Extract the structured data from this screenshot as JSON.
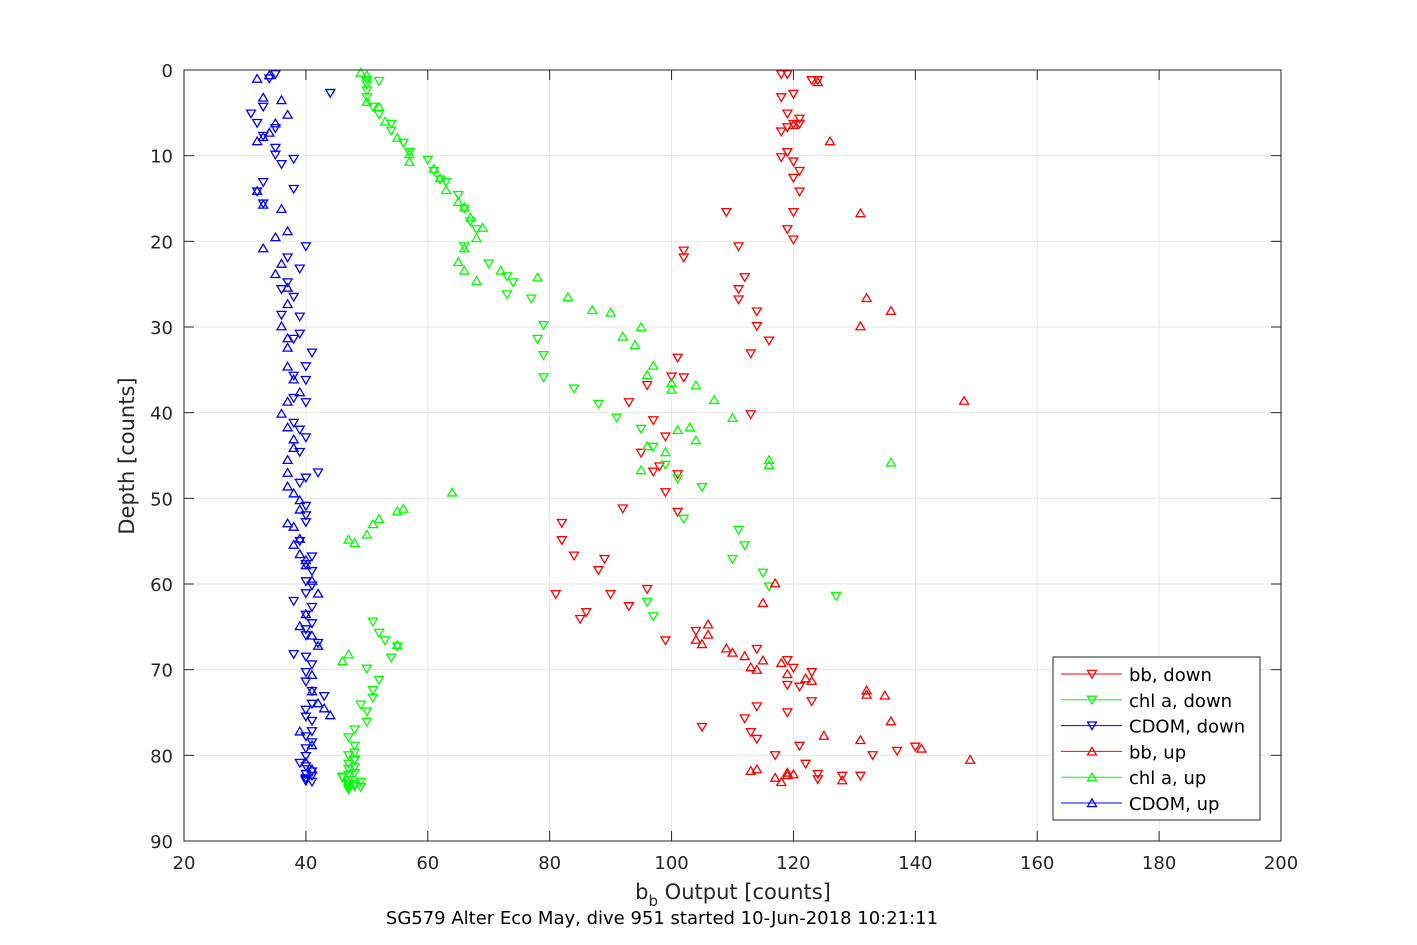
{
  "chart_data": {
    "type": "scatter",
    "xlabel_main": "b",
    "xlabel_sub": "b",
    "xlabel_rest": " Output [counts]",
    "ylabel": "Depth [counts]",
    "bottom_title": "SG579 Alter Eco May, dive 951 started 10-Jun-2018 10:21:11",
    "xlim": [
      20,
      200
    ],
    "ylim": [
      0,
      90
    ],
    "y_reversed": true,
    "grid": true,
    "legend_position": "bottom-right",
    "xticks": [
      "20",
      "40",
      "60",
      "80",
      "100",
      "120",
      "140",
      "160",
      "180",
      "200"
    ],
    "yticks": [
      "0",
      "10",
      "20",
      "30",
      "40",
      "50",
      "60",
      "70",
      "80",
      "90"
    ],
    "series": [
      {
        "name": "bb, down",
        "color": "#ff0000",
        "marker": "down",
        "x": [
          118,
          119,
          123,
          124,
          120,
          118,
          119,
          121,
          120,
          121,
          119,
          118,
          119,
          118,
          120,
          121,
          120,
          121,
          120,
          119,
          120,
          109,
          102,
          102,
          111,
          112,
          111,
          111,
          114,
          114,
          116,
          113,
          101,
          100,
          102,
          96,
          93,
          113,
          97,
          99,
          95,
          98,
          97,
          101,
          99,
          101,
          92,
          82,
          82,
          84,
          89,
          88,
          96,
          81,
          93,
          90,
          86,
          85,
          104,
          99,
          114,
          119,
          120,
          123,
          119,
          121,
          123,
          114,
          119,
          112,
          105,
          113,
          114,
          121,
          117,
          122,
          124,
          131,
          140,
          137,
          133,
          128,
          124
        ],
        "y": [
          0.5,
          0.5,
          1.2,
          1.2,
          2.8,
          3.2,
          5.1,
          5.7,
          6.3,
          6.3,
          6.7,
          7.2,
          9.6,
          10.2,
          10.7,
          11.8,
          12.6,
          14.2,
          16.6,
          18.6,
          19.8,
          16.6,
          21.1,
          21.9,
          20.6,
          24.2,
          25.6,
          26.8,
          28.2,
          29.9,
          31.6,
          33.1,
          33.6,
          35.8,
          35.9,
          36.8,
          38.8,
          40.2,
          40.9,
          42.8,
          44.7,
          46.3,
          46.9,
          47.2,
          49.3,
          51.6,
          51.2,
          52.9,
          54.9,
          56.7,
          57.1,
          58.4,
          60.6,
          61.2,
          62.6,
          61.2,
          63.3,
          64.1,
          65.5,
          66.6,
          67.6,
          68.9,
          69.8,
          70.3,
          71.8,
          72.0,
          73.7,
          74.3,
          75.0,
          75.7,
          76.7,
          77.3,
          78.1,
          78.9,
          80.0,
          81.0,
          82.2,
          82.4,
          79.0,
          79.5,
          80.0,
          82.4,
          82.8
        ]
      },
      {
        "name": "chl a, down",
        "color": "#00ff00",
        "marker": "down",
        "x": [
          50,
          52,
          50,
          50,
          50,
          44,
          51,
          52,
          54,
          54,
          56,
          57,
          60,
          61,
          62,
          63,
          65,
          66,
          67,
          68,
          66,
          70,
          73,
          74,
          73,
          77,
          79,
          78,
          79,
          79,
          84,
          88,
          91,
          95,
          97,
          99,
          101,
          105,
          102,
          111,
          112,
          110,
          115,
          116,
          127,
          96,
          97,
          51,
          52,
          53,
          55,
          54,
          50,
          52,
          51,
          51,
          49,
          50,
          50,
          48,
          47,
          48,
          48,
          48,
          47,
          46,
          47,
          47,
          48,
          47,
          48,
          48,
          47,
          46,
          47,
          49,
          48,
          47,
          48,
          49,
          47,
          47,
          47
        ],
        "y": [
          1.2,
          1.3,
          1.7,
          2.4,
          3.2,
          2.7,
          4.3,
          5.2,
          6.3,
          7.1,
          8.5,
          9.6,
          10.5,
          11.8,
          12.8,
          13.1,
          14.6,
          16.2,
          17.7,
          18.6,
          20.6,
          22.6,
          24.1,
          24.8,
          26.2,
          26.7,
          29.8,
          31.4,
          33.3,
          35.9,
          37.2,
          39.0,
          40.6,
          41.9,
          44.0,
          46.1,
          47.7,
          48.7,
          52.4,
          53.7,
          55.5,
          57.1,
          58.7,
          60.3,
          61.4,
          62.1,
          63.8,
          64.4,
          65.7,
          66.6,
          67.3,
          68.6,
          69.9,
          71.2,
          72.4,
          73.3,
          74.1,
          74.9,
          76.1,
          77.0,
          77.9,
          78.9,
          79.7,
          80.6,
          81.6,
          82.5,
          83.3,
          80.0,
          80.5,
          81.0,
          81.4,
          82.1,
          82.3,
          82.6,
          82.9,
          83.1,
          83.4,
          83.5,
          83.6,
          83.7,
          83.8,
          83.9,
          84.0
        ]
      },
      {
        "name": "CDOM, down",
        "color": "#0000ff",
        "marker": "down",
        "x": [
          35,
          34,
          44,
          33,
          31,
          32,
          35,
          33,
          35,
          35,
          38,
          36,
          33,
          32,
          33,
          38,
          40,
          37,
          39,
          37,
          36,
          38,
          36,
          39,
          39,
          38,
          41,
          40,
          38,
          40,
          38,
          40,
          38,
          39,
          40,
          39,
          42,
          40,
          39,
          40,
          40,
          40,
          39,
          41,
          40,
          41,
          40,
          41,
          40,
          38,
          41,
          40,
          41,
          40,
          40,
          42,
          38,
          40,
          41,
          40,
          40,
          41,
          43,
          41,
          40,
          40,
          41,
          41,
          40,
          41,
          40,
          40,
          39,
          40,
          41,
          40,
          41,
          40,
          40,
          40,
          40,
          41
        ],
        "y": [
          0.5,
          1.0,
          2.7,
          4.3,
          5.1,
          6.2,
          6.8,
          7.7,
          9.1,
          9.9,
          10.4,
          11.0,
          13.1,
          14.2,
          15.6,
          13.9,
          20.6,
          21.9,
          23.2,
          24.8,
          25.6,
          26.5,
          28.6,
          28.8,
          30.8,
          31.4,
          33.0,
          34.6,
          35.7,
          36.2,
          38.3,
          38.8,
          41.2,
          42.0,
          42.9,
          44.6,
          47.0,
          47.6,
          48.2,
          50.9,
          52.0,
          52.8,
          55.0,
          56.8,
          57.7,
          58.5,
          59.7,
          60.2,
          61.1,
          62.0,
          62.7,
          63.6,
          64.6,
          65.3,
          66.0,
          66.9,
          68.2,
          68.5,
          69.4,
          70.3,
          71.4,
          72.5,
          73.1,
          74.0,
          74.7,
          75.5,
          76.0,
          77.2,
          77.8,
          78.5,
          79.2,
          80.1,
          80.9,
          81.3,
          81.9,
          82.2,
          82.4,
          82.7,
          82.8,
          82.9,
          83.0,
          83.1
        ]
      },
      {
        "name": "bb, up",
        "color": "#ff0000",
        "marker": "up",
        "x": [
          124,
          120,
          126,
          131,
          132,
          136,
          131,
          148,
          117,
          115,
          106,
          106,
          104,
          105,
          109,
          110,
          112,
          115,
          118,
          113,
          114,
          119,
          122,
          123,
          125,
          131,
          132,
          135,
          136,
          141,
          149,
          132,
          120,
          128,
          119,
          114,
          113,
          119,
          117,
          118
        ],
        "y": [
          1.4,
          6.4,
          8.3,
          16.7,
          26.6,
          28.1,
          29.9,
          38.6,
          59.9,
          62.2,
          64.7,
          65.9,
          66.5,
          67.0,
          67.5,
          68.0,
          68.4,
          68.9,
          69.2,
          69.7,
          70.0,
          70.5,
          71.0,
          71.3,
          77.7,
          78.2,
          72.4,
          73.0,
          76.0,
          79.2,
          80.5,
          72.9,
          82.2,
          82.9,
          82.0,
          81.6,
          81.8,
          82.3,
          82.6,
          83.1
        ]
      },
      {
        "name": "chl a, up",
        "color": "#00ff00",
        "marker": "up",
        "x": [
          49,
          50,
          50,
          52,
          53,
          55,
          57,
          57,
          61,
          62,
          63,
          65,
          66,
          67,
          69,
          68,
          66,
          65,
          66,
          68,
          72,
          78,
          83,
          87,
          90,
          95,
          92,
          94,
          97,
          96,
          100,
          104,
          100,
          107,
          103,
          110,
          101,
          104,
          96,
          99,
          116,
          136,
          116,
          95,
          64,
          56,
          55,
          52,
          51,
          50,
          47,
          48,
          55,
          47,
          46
        ],
        "y": [
          0.3,
          0.6,
          3.7,
          4.3,
          6.0,
          7.9,
          9.8,
          10.7,
          11.5,
          12.6,
          14.0,
          15.4,
          16.0,
          17.2,
          18.4,
          19.6,
          20.8,
          22.4,
          23.4,
          24.6,
          23.4,
          24.2,
          26.5,
          28.0,
          28.3,
          30.0,
          31.1,
          32.1,
          34.5,
          35.6,
          36.5,
          36.8,
          37.3,
          38.5,
          41.7,
          40.6,
          42.0,
          43.2,
          43.9,
          44.6,
          45.5,
          45.8,
          46.1,
          46.7,
          49.3,
          51.2,
          51.5,
          52.4,
          53.0,
          54.2,
          54.8,
          55.2,
          67.1,
          68.2,
          69.0
        ]
      },
      {
        "name": "CDOM, up",
        "color": "#0000ff",
        "marker": "up",
        "x": [
          34,
          32,
          33,
          36,
          37,
          35,
          34,
          33,
          32,
          32,
          33,
          36,
          37,
          35,
          33,
          36,
          35,
          37,
          37,
          36,
          37,
          37,
          37,
          38,
          39,
          37,
          36,
          37,
          38,
          38,
          37,
          37,
          37,
          38,
          39,
          39,
          37,
          38,
          39,
          38,
          39,
          40,
          40,
          41,
          42,
          40,
          39,
          41,
          42,
          41,
          41,
          42,
          43,
          44,
          39,
          41,
          40,
          41
        ],
        "y": [
          0.6,
          1.0,
          3.2,
          3.5,
          5.2,
          6.2,
          7.3,
          7.8,
          8.3,
          14.1,
          15.7,
          16.2,
          18.8,
          19.5,
          20.8,
          22.6,
          23.8,
          25.4,
          27.3,
          29.9,
          31.3,
          32.4,
          34.6,
          36.1,
          37.6,
          38.7,
          40.1,
          41.7,
          43.1,
          44.1,
          45.5,
          47.0,
          48.6,
          49.4,
          50.2,
          51.3,
          52.9,
          53.3,
          54.7,
          55.4,
          56.5,
          57.2,
          57.8,
          59.6,
          61.1,
          63.5,
          64.9,
          66.0,
          67.2,
          70.6,
          72.5,
          73.9,
          74.5,
          75.3,
          77.2,
          78.8,
          80.8,
          81.6
        ]
      }
    ]
  }
}
